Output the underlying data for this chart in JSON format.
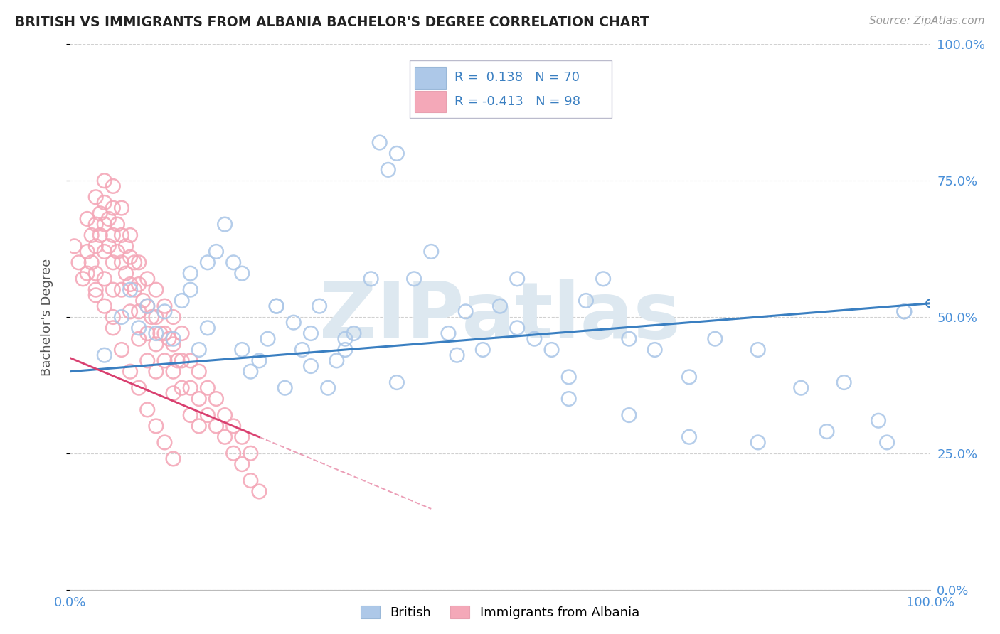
{
  "title": "BRITISH VS IMMIGRANTS FROM ALBANIA BACHELOR'S DEGREE CORRELATION CHART",
  "source": "Source: ZipAtlas.com",
  "ylabel": "Bachelor's Degree",
  "watermark": "ZIPatlas",
  "xlim": [
    0,
    1
  ],
  "ylim": [
    0,
    1
  ],
  "ytick_positions": [
    0.0,
    0.25,
    0.5,
    0.75,
    1.0
  ],
  "british_R": 0.138,
  "british_N": 70,
  "albania_R": -0.413,
  "albania_N": 98,
  "british_color": "#adc8e8",
  "albania_color": "#f4a8b8",
  "british_line_color": "#3a7fc1",
  "albania_line_color": "#d94070",
  "tick_color": "#4a90d9",
  "grid_color": "#cccccc",
  "title_color": "#222222",
  "source_color": "#999999",
  "watermark_color": "#dde8f0",
  "brit_x": [
    0.04,
    0.06,
    0.07,
    0.08,
    0.09,
    0.1,
    0.11,
    0.12,
    0.13,
    0.14,
    0.15,
    0.16,
    0.17,
    0.18,
    0.19,
    0.2,
    0.21,
    0.22,
    0.23,
    0.24,
    0.25,
    0.26,
    0.27,
    0.28,
    0.29,
    0.3,
    0.31,
    0.32,
    0.33,
    0.35,
    0.36,
    0.37,
    0.38,
    0.4,
    0.42,
    0.44,
    0.46,
    0.48,
    0.5,
    0.52,
    0.54,
    0.56,
    0.58,
    0.6,
    0.62,
    0.65,
    0.68,
    0.72,
    0.75,
    0.8,
    0.85,
    0.9,
    0.95,
    0.97,
    0.14,
    0.16,
    0.2,
    0.24,
    0.28,
    0.32,
    0.38,
    0.45,
    0.52,
    0.58,
    0.65,
    0.72,
    0.8,
    0.88,
    0.94,
    0.97
  ],
  "brit_y": [
    0.43,
    0.5,
    0.55,
    0.48,
    0.52,
    0.47,
    0.51,
    0.46,
    0.53,
    0.58,
    0.44,
    0.48,
    0.62,
    0.67,
    0.6,
    0.44,
    0.4,
    0.42,
    0.46,
    0.52,
    0.37,
    0.49,
    0.44,
    0.41,
    0.52,
    0.37,
    0.42,
    0.46,
    0.47,
    0.57,
    0.82,
    0.77,
    0.8,
    0.57,
    0.62,
    0.47,
    0.51,
    0.44,
    0.52,
    0.57,
    0.46,
    0.44,
    0.39,
    0.53,
    0.57,
    0.46,
    0.44,
    0.39,
    0.46,
    0.44,
    0.37,
    0.38,
    0.27,
    0.51,
    0.55,
    0.6,
    0.58,
    0.52,
    0.47,
    0.44,
    0.38,
    0.43,
    0.48,
    0.35,
    0.32,
    0.28,
    0.27,
    0.29,
    0.31,
    0.51
  ],
  "alb_x": [
    0.005,
    0.01,
    0.015,
    0.02,
    0.02,
    0.025,
    0.025,
    0.03,
    0.03,
    0.03,
    0.03,
    0.03,
    0.035,
    0.035,
    0.04,
    0.04,
    0.04,
    0.04,
    0.04,
    0.045,
    0.045,
    0.05,
    0.05,
    0.05,
    0.05,
    0.05,
    0.05,
    0.055,
    0.055,
    0.06,
    0.06,
    0.06,
    0.06,
    0.065,
    0.065,
    0.07,
    0.07,
    0.07,
    0.07,
    0.075,
    0.075,
    0.08,
    0.08,
    0.08,
    0.08,
    0.085,
    0.09,
    0.09,
    0.09,
    0.09,
    0.095,
    0.1,
    0.1,
    0.1,
    0.1,
    0.105,
    0.11,
    0.11,
    0.11,
    0.115,
    0.12,
    0.12,
    0.12,
    0.12,
    0.125,
    0.13,
    0.13,
    0.13,
    0.14,
    0.14,
    0.14,
    0.15,
    0.15,
    0.15,
    0.16,
    0.16,
    0.17,
    0.17,
    0.18,
    0.18,
    0.19,
    0.19,
    0.2,
    0.2,
    0.21,
    0.21,
    0.22,
    0.02,
    0.03,
    0.04,
    0.05,
    0.06,
    0.07,
    0.08,
    0.09,
    0.1,
    0.11,
    0.12
  ],
  "alb_y": [
    0.63,
    0.6,
    0.57,
    0.68,
    0.62,
    0.65,
    0.6,
    0.72,
    0.67,
    0.63,
    0.58,
    0.54,
    0.69,
    0.65,
    0.75,
    0.71,
    0.67,
    0.62,
    0.57,
    0.68,
    0.63,
    0.74,
    0.7,
    0.65,
    0.6,
    0.55,
    0.5,
    0.67,
    0.62,
    0.7,
    0.65,
    0.6,
    0.55,
    0.63,
    0.58,
    0.65,
    0.61,
    0.56,
    0.51,
    0.6,
    0.55,
    0.6,
    0.56,
    0.51,
    0.46,
    0.53,
    0.57,
    0.52,
    0.47,
    0.42,
    0.5,
    0.55,
    0.5,
    0.45,
    0.4,
    0.47,
    0.52,
    0.47,
    0.42,
    0.46,
    0.5,
    0.45,
    0.4,
    0.36,
    0.42,
    0.47,
    0.42,
    0.37,
    0.42,
    0.37,
    0.32,
    0.4,
    0.35,
    0.3,
    0.37,
    0.32,
    0.35,
    0.3,
    0.32,
    0.28,
    0.3,
    0.25,
    0.28,
    0.23,
    0.25,
    0.2,
    0.18,
    0.58,
    0.55,
    0.52,
    0.48,
    0.44,
    0.4,
    0.37,
    0.33,
    0.3,
    0.27,
    0.24
  ],
  "brit_line_x0": 0.0,
  "brit_line_y0": 0.4,
  "brit_line_x1": 1.0,
  "brit_line_y1": 0.525,
  "alb_line_x0": 0.0,
  "alb_line_y0": 0.425,
  "alb_line_x1": 0.22,
  "alb_line_y1": 0.28
}
